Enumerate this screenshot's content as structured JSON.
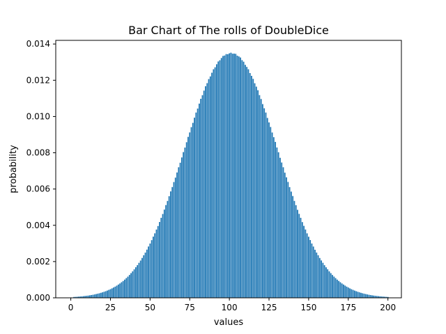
{
  "chart_data": {
    "type": "bar",
    "title": "Bar Chart of The rolls of DoubleDice",
    "xlabel": "values",
    "ylabel": "probability",
    "xlim": [
      -9.5,
      208.5
    ],
    "ylim": [
      0,
      0.0142
    ],
    "xticks": [
      0,
      25,
      50,
      75,
      100,
      125,
      150,
      175,
      200
    ],
    "xtick_labels": [
      "0",
      "25",
      "50",
      "75",
      "100",
      "125",
      "150",
      "175",
      "200"
    ],
    "yticks": [
      0.0,
      0.002,
      0.004,
      0.006,
      0.008,
      0.01,
      0.012,
      0.014
    ],
    "ytick_labels": [
      "0.000",
      "0.002",
      "0.004",
      "0.006",
      "0.008",
      "0.010",
      "0.012",
      "0.014"
    ],
    "x_start": 2,
    "x_end": 200,
    "peak_value": 101,
    "peak_probability": 0.0135,
    "bar_color": "#1f77b4",
    "grid": false
  }
}
